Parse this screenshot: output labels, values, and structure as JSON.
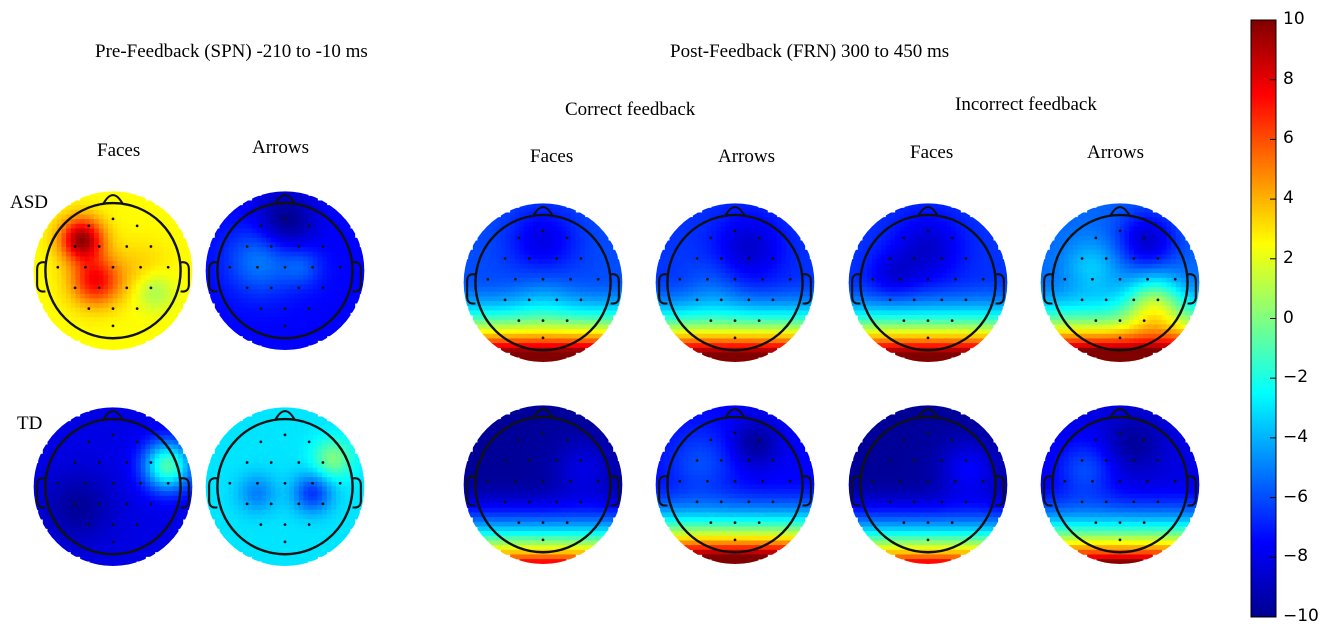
{
  "titles": {
    "pre": "Pre-Feedback (SPN) -210 to -10 ms",
    "post": "Post-Feedback (FRN) 300 to 450 ms",
    "correct": "Correct feedback",
    "incorrect": "Incorrect feedback"
  },
  "column_labels": {
    "pre_faces": "Faces",
    "pre_arrows": "Arrows",
    "cor_faces": "Faces",
    "cor_arrows": "Arrows",
    "inc_faces": "Faces",
    "inc_arrows": "Arrows"
  },
  "row_labels": {
    "asd": "ASD",
    "td": "TD"
  },
  "chart_data": {
    "type": "heatmap",
    "colorbar": {
      "min": -10,
      "max": 10,
      "ticks": [
        "10",
        "8",
        "6",
        "4",
        "2",
        "0",
        "−2",
        "−4",
        "−6",
        "−8",
        "−10"
      ],
      "colormap": "jet"
    },
    "maps": [
      {
        "group": "ASD",
        "condition": "Pre-Feedback",
        "stimulus": "Faces",
        "base": 2.5,
        "blobs": [
          [
            -0.45,
            -0.45,
            0.22,
            7
          ],
          [
            -0.25,
            0.15,
            0.25,
            5
          ],
          [
            0.4,
            0.0,
            0.3,
            1
          ],
          [
            0.0,
            0.6,
            0.3,
            0
          ],
          [
            0.6,
            0.3,
            0.2,
            -2
          ]
        ]
      },
      {
        "group": "ASD",
        "condition": "Pre-Feedback",
        "stimulus": "Arrows",
        "base": -7.5,
        "blobs": [
          [
            -0.35,
            -0.15,
            0.35,
            2.5
          ],
          [
            0.25,
            -0.05,
            0.2,
            1.5
          ],
          [
            0.0,
            -0.7,
            0.3,
            -2.5
          ]
        ]
      },
      {
        "group": "ASD",
        "condition": "Correct feedback",
        "stimulus": "Faces",
        "base": -6,
        "blobs": [
          [
            0.0,
            -0.6,
            0.35,
            -2
          ],
          [
            0.0,
            0.2,
            0.3,
            1
          ]
        ],
        "post": true
      },
      {
        "group": "ASD",
        "condition": "Correct feedback",
        "stimulus": "Arrows",
        "base": -6.5,
        "blobs": [
          [
            0.2,
            -0.5,
            0.35,
            -2
          ],
          [
            -0.3,
            0.1,
            0.3,
            1
          ]
        ],
        "post": true
      },
      {
        "group": "ASD",
        "condition": "Incorrect feedback",
        "stimulus": "Faces",
        "base": -6.5,
        "blobs": [
          [
            0.0,
            -0.5,
            0.35,
            -2
          ],
          [
            -0.5,
            -0.1,
            0.25,
            -1.5
          ]
        ],
        "post": true
      },
      {
        "group": "ASD",
        "condition": "Incorrect feedback",
        "stimulus": "Arrows",
        "base": -5.5,
        "blobs": [
          [
            0.5,
            0.3,
            0.3,
            5
          ],
          [
            -0.4,
            -0.2,
            0.3,
            2
          ],
          [
            0.4,
            -0.6,
            0.3,
            -3
          ]
        ],
        "post": true
      },
      {
        "group": "TD",
        "condition": "Pre-Feedback",
        "stimulus": "Faces",
        "base": -8,
        "blobs": [
          [
            0.8,
            -0.3,
            0.25,
            7
          ],
          [
            -0.5,
            0.3,
            0.35,
            -1.5
          ]
        ]
      },
      {
        "group": "TD",
        "condition": "Pre-Feedback",
        "stimulus": "Arrows",
        "base": -3,
        "blobs": [
          [
            0.4,
            0.1,
            0.2,
            -3.5
          ],
          [
            -0.4,
            0.1,
            0.2,
            -2
          ],
          [
            0.7,
            -0.4,
            0.2,
            3
          ]
        ]
      },
      {
        "group": "TD",
        "condition": "Correct feedback",
        "stimulus": "Faces",
        "base": -9.5,
        "blobs": [
          [
            0.6,
            -0.2,
            0.3,
            1.5
          ]
        ],
        "post": true,
        "lowFactor": 0.85
      },
      {
        "group": "TD",
        "condition": "Correct feedback",
        "stimulus": "Arrows",
        "base": -7.5,
        "blobs": [
          [
            -0.5,
            -0.3,
            0.35,
            1.5
          ],
          [
            0.3,
            -0.6,
            0.25,
            -2
          ]
        ],
        "post": true,
        "lowFactor": 1.05
      },
      {
        "group": "TD",
        "condition": "Incorrect feedback",
        "stimulus": "Faces",
        "base": -9.5,
        "blobs": [
          [
            0.6,
            -0.2,
            0.3,
            2
          ]
        ],
        "post": true,
        "lowFactor": 0.85
      },
      {
        "group": "TD",
        "condition": "Incorrect feedback",
        "stimulus": "Arrows",
        "base": -8,
        "blobs": [
          [
            -0.5,
            -0.2,
            0.3,
            2
          ],
          [
            0.2,
            -0.6,
            0.3,
            -1.5
          ]
        ],
        "post": true,
        "lowFactor": 0.9
      }
    ]
  }
}
